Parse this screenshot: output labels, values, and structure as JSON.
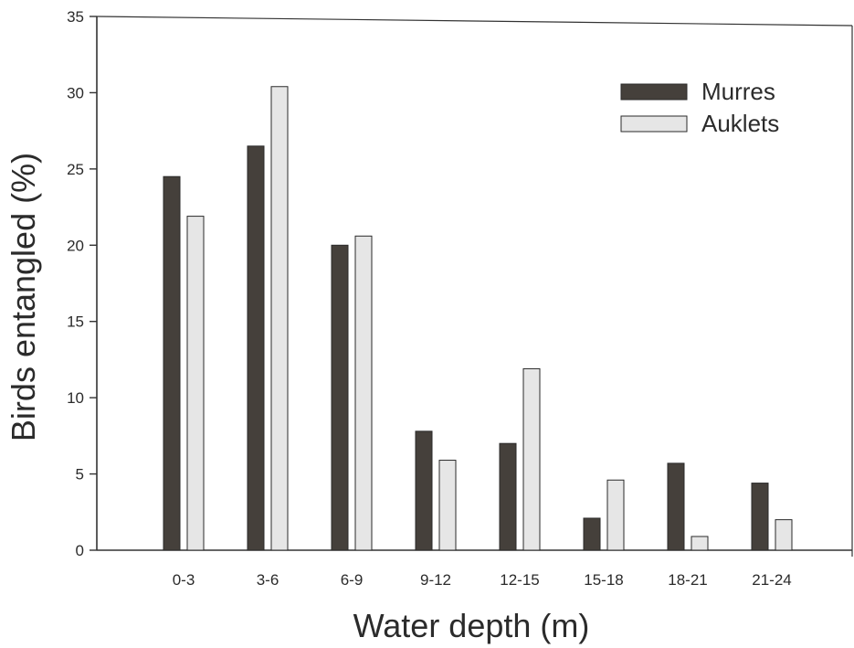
{
  "chart_data": {
    "type": "bar",
    "xlabel": "Water depth (m)",
    "ylabel": "Birds entangled (%)",
    "ylim": [
      0,
      35
    ],
    "yticks": [
      0,
      5,
      10,
      15,
      20,
      25,
      30,
      35
    ],
    "categories": [
      "0-3",
      "3-6",
      "6-9",
      "9-12",
      "12-15",
      "15-18",
      "18-21",
      "21-24"
    ],
    "series": [
      {
        "name": "Murres",
        "color": "#45403b",
        "values": [
          24.5,
          26.5,
          20.0,
          7.8,
          7.0,
          2.1,
          5.7,
          4.4
        ]
      },
      {
        "name": "Auklets",
        "color": "#e6e6e6",
        "values": [
          21.9,
          30.4,
          20.6,
          5.9,
          11.9,
          4.6,
          0.9,
          2.0
        ]
      }
    ],
    "legend_position": "top-right",
    "grid": false
  }
}
